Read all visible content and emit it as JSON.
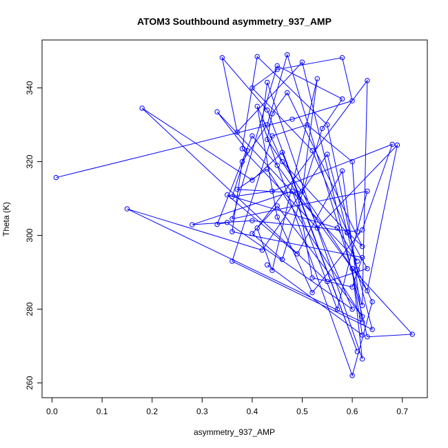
{
  "chart_data": {
    "type": "line",
    "title": "ATOM3 Southbound asymmetry_937_AMP",
    "xlabel": "asymmetry_937_AMP",
    "ylabel": "Theta (K)",
    "xlim": [
      -0.02,
      0.75
    ],
    "ylim": [
      256,
      353
    ],
    "xticks": [
      "0.0",
      "0.1",
      "0.2",
      "0.3",
      "0.4",
      "0.5",
      "0.6",
      "0.7"
    ],
    "yticks": [
      "260",
      "280",
      "300",
      "320",
      "340"
    ],
    "grid": false,
    "legend": "none",
    "series_color": "#0000ff",
    "series": [
      {
        "marker": "open-circle",
        "x": [
          0.008,
          0.48,
          0.6,
          0.58,
          0.45,
          0.4,
          0.52,
          0.59,
          0.62,
          0.47,
          0.44,
          0.43,
          0.63,
          0.69,
          0.53,
          0.38,
          0.41,
          0.55,
          0.61,
          0.64,
          0.6,
          0.42,
          0.43,
          0.62,
          0.6,
          0.72,
          0.63,
          0.5,
          0.37,
          0.34,
          0.43,
          0.61,
          0.46,
          0.4,
          0.18,
          0.55,
          0.63,
          0.59,
          0.46,
          0.41,
          0.45,
          0.52,
          0.62,
          0.68,
          0.44,
          0.36,
          0.39,
          0.33,
          0.61,
          0.57,
          0.35,
          0.49,
          0.58,
          0.62,
          0.15,
          0.42,
          0.55,
          0.64,
          0.36,
          0.44,
          0.51,
          0.6,
          0.61,
          0.4,
          0.28,
          0.48,
          0.57,
          0.63,
          0.36,
          0.45,
          0.58,
          0.54,
          0.46,
          0.4,
          0.45,
          0.62,
          0.43,
          0.37,
          0.49,
          0.52,
          0.6,
          0.62,
          0.36,
          0.38,
          0.43,
          0.47,
          0.62,
          0.63,
          0.41,
          0.44,
          0.53,
          0.5,
          0.6,
          0.35,
          0.33,
          0.4,
          0.45,
          0.6,
          0.62,
          0.43
        ],
        "y": [
          315.7,
          331.5,
          336.5,
          348.2,
          345.0,
          340.0,
          323.0,
          301.0,
          297.0,
          338.7,
          333.0,
          326.0,
          285.0,
          324.5,
          302.0,
          323.5,
          348.5,
          330.0,
          290.7,
          282.0,
          262.0,
          330.5,
          341.5,
          266.5,
          291.0,
          273.2,
          272.5,
          347.0,
          328.0,
          348.2,
          334.0,
          268.5,
          322.5,
          315.0,
          334.5,
          287.5,
          291.0,
          300.7,
          320.0,
          335.0,
          305.0,
          284.5,
          301.5,
          324.7,
          312.0,
          310.5,
          323.0,
          333.5,
          293.0,
          302.0,
          311.0,
          295.0,
          317.5,
          276.5,
          307.2,
          296.0,
          322.0,
          274.5,
          293.0,
          327.0,
          330.0,
          320.0,
          301.0,
          304.0,
          302.9,
          312.0,
          280.0,
          312.0,
          304.5,
          346.0,
          337.0,
          329.0,
          293.5,
          300.5,
          308.0,
          278.0,
          318.0,
          312.5,
          311.5,
          288.5,
          286.0,
          294.0,
          301.0,
          320.0,
          330.0,
          349.0,
          281.0,
          342.0,
          302.0,
          290.5,
          342.5,
          312.0,
          280.0,
          303.5,
          303.0,
          327.0,
          319.0,
          291.0,
          273.0,
          292.0
        ]
      }
    ]
  }
}
